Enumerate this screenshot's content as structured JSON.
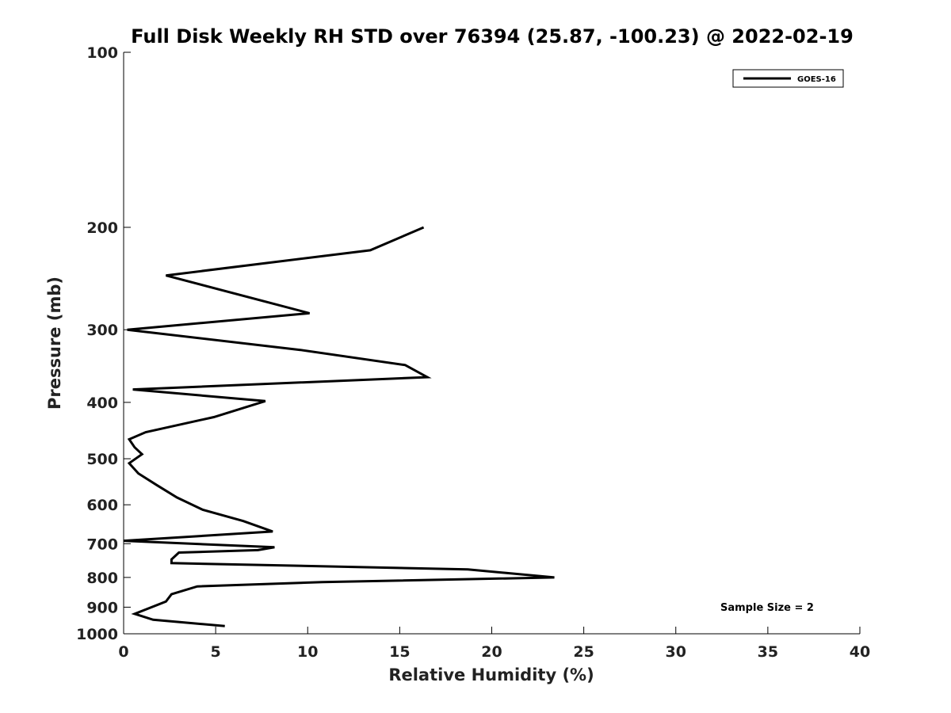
{
  "chart_data": {
    "type": "line",
    "title": "Full Disk Weekly RH STD over 76394 (25.87, -100.23) @ 2022-02-19",
    "xlabel": "Relative Humidity (%)",
    "ylabel": "Pressure (mb)",
    "xlim": [
      0,
      40
    ],
    "ylim": [
      100,
      1000
    ],
    "y_scale": "log",
    "y_reversed": true,
    "x_ticks": [
      0,
      5,
      10,
      15,
      20,
      25,
      30,
      35,
      40
    ],
    "x_tick_labels": [
      "0",
      "5",
      "10",
      "15",
      "20",
      "25",
      "30",
      "35",
      "40"
    ],
    "y_ticks": [
      100,
      200,
      300,
      400,
      500,
      600,
      700,
      800,
      900,
      1000
    ],
    "y_tick_labels": [
      "100",
      "200",
      "300",
      "400",
      "500",
      "600",
      "700",
      "800",
      "900",
      "1000"
    ],
    "grid": false,
    "legend_position": "top-right",
    "annotation": "Sample Size = 2",
    "series": [
      {
        "name": "GOES-16",
        "color": "#000000",
        "x": [
          16.3,
          13.4,
          2.3,
          10.1,
          0.2,
          9.6,
          15.3,
          16.5,
          0.5,
          7.7,
          4.9,
          1.2,
          0.3,
          0.6,
          1.0,
          0.3,
          0.8,
          1.8,
          2.9,
          4.3,
          6.5,
          8.1,
          0.0,
          8.2,
          7.3,
          3.0,
          2.6,
          2.6,
          18.7,
          23.4,
          10.8,
          4.0,
          2.6,
          2.3,
          0.6,
          1.6,
          5.5
        ],
        "y": [
          200,
          219,
          242,
          281,
          300,
          325,
          345,
          362,
          380,
          398,
          424,
          450,
          463,
          478,
          491,
          509,
          530,
          555,
          583,
          612,
          640,
          667,
          692,
          710,
          718,
          725,
          745,
          756,
          775,
          800,
          815,
          829,
          855,
          880,
          924,
          946,
          970
        ]
      }
    ]
  }
}
